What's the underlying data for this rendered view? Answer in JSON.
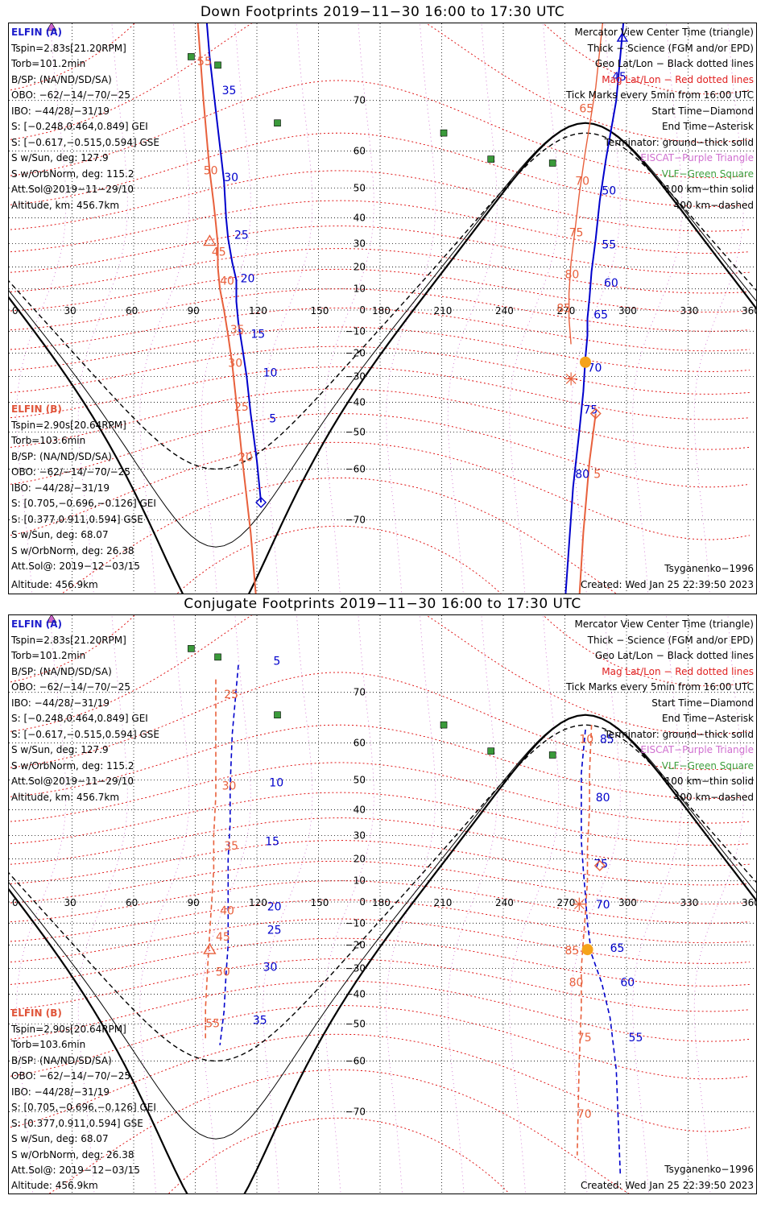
{
  "panels": [
    {
      "id": "down",
      "title": "Down Footprints 2019−11−30 16:00 to 17:30 UTC",
      "elfin_a_header": "ELFIN (A)",
      "elfin_a_lines": [
        "Tspin=2.83s[21.20RPM]",
        "Torb=101.2min",
        "B/SP: (NA/ND/SD/SA)",
        "OBO: −62/−14/−70/−25",
        "IBO: −44/28/−31/19",
        "S: [−0.248,0.464,0.849] GEI",
        "S: [−0.617,−0.515,0.594] GSE",
        "S w/Sun, deg: 127.9",
        "S w/OrbNorm, deg: 115.2",
        "Att.Sol@2019−11−29/10",
        "Altitude, km: 456.7km"
      ],
      "elfin_b_header": "ELFIN (B)",
      "elfin_b_lines": [
        "Tspin=2.90s[20.64RPM]",
        "Torb=103.6min",
        "B/SP: (NA/ND/SD/SA)",
        "OBO: −62/−14/−70/−25",
        "IBO: −44/28/−31/19",
        "S: [0.705,−0.696,−0.126] GEI",
        "S: [0.377,0.911,0.594] GSE",
        "S w/Sun, deg: 68.07",
        "S w/OrbNorm, deg: 26.38",
        "Att.Sol@: 2019−12−03/15",
        "Altitude: 456.9km"
      ],
      "model": "Tsyganenko−1996",
      "created": "Created: Wed Jan 25 22:39:50 2023",
      "track_a_labels": [
        {
          "t": "35",
          "lon": 103,
          "lat": 71
        },
        {
          "t": "30",
          "lon": 104,
          "lat": 52
        },
        {
          "t": "25",
          "lon": 109,
          "lat": 32
        },
        {
          "t": "20",
          "lon": 112,
          "lat": 13
        },
        {
          "t": "15",
          "lon": 117,
          "lat": -13
        },
        {
          "t": "10",
          "lon": 123,
          "lat": -30
        },
        {
          "t": "5",
          "lon": 126,
          "lat": -47
        },
        {
          "t": "45",
          "lon": 293,
          "lat": 73
        },
        {
          "t": "50",
          "lon": 288,
          "lat": 48
        },
        {
          "t": "55",
          "lon": 288,
          "lat": 28
        },
        {
          "t": "60",
          "lon": 289,
          "lat": 11
        },
        {
          "t": "65",
          "lon": 284,
          "lat": -4
        },
        {
          "t": "70",
          "lon": 281,
          "lat": -28
        },
        {
          "t": "75",
          "lon": 279,
          "lat": -44
        },
        {
          "t": "80",
          "lon": 275,
          "lat": -62
        }
      ],
      "track_b_labels": [
        {
          "t": "55",
          "lon": 91,
          "lat": 75
        },
        {
          "t": "50",
          "lon": 94,
          "lat": 54
        },
        {
          "t": "45",
          "lon": 98,
          "lat": 25
        },
        {
          "t": "40",
          "lon": 102,
          "lat": 12
        },
        {
          "t": "35",
          "lon": 107,
          "lat": -11
        },
        {
          "t": "30",
          "lon": 106,
          "lat": -26
        },
        {
          "t": "25",
          "lon": 109,
          "lat": -43
        },
        {
          "t": "20",
          "lon": 111,
          "lat": -58
        },
        {
          "t": "65",
          "lon": 277,
          "lat": 68
        },
        {
          "t": "70",
          "lon": 275,
          "lat": 51
        },
        {
          "t": "75",
          "lon": 272,
          "lat": 33
        },
        {
          "t": "80",
          "lon": 270,
          "lat": 15
        },
        {
          "t": "85",
          "lon": 266,
          "lat": -1
        },
        {
          "t": "5",
          "lon": 284,
          "lat": -62
        }
      ]
    },
    {
      "id": "conj",
      "title": "Conjugate Footprints 2019−11−30 16:00 to 17:30 UTC",
      "elfin_a_header": "ELFIN (A)",
      "elfin_a_lines": [
        "Tspin=2.83s[21.20RPM]",
        "Torb=101.2min",
        "B/SP: (NA/ND/SD/SA)",
        "OBO: −62/−14/−70/−25",
        "IBO: −44/28/−31/19",
        "S: [−0.248,0.464,0.849] GEI",
        "S: [−0.617,−0.515,0.594] GSE",
        "S w/Sun, deg: 127.9",
        "S w/OrbNorm, deg: 115.2",
        "Att.Sol@2019−11−29/10",
        "Altitude, km: 456.7km"
      ],
      "elfin_b_header": "ELFIN (B)",
      "elfin_b_lines": [
        "Tspin=2.90s[20.64RPM]",
        "Torb=103.6min",
        "B/SP: (NA/ND/SD/SA)",
        "OBO: −62/−14/−70/−25",
        "IBO: −44/28/−31/19",
        "S: [0.705,−0.696,−0.126] GEI",
        "S: [0.377,0.911,0.594] GSE",
        "S w/Sun, deg: 68.07",
        "S w/OrbNorm, deg: 26.38",
        "Att.Sol@: 2019−12−03/15",
        "Altitude: 456.9km"
      ],
      "model": "Tsyganenko−1996",
      "created": "Created: Wed Jan 25 22:39:50 2023",
      "track_a_labels": [
        {
          "t": "5",
          "lon": 128,
          "lat": 74
        },
        {
          "t": "10",
          "lon": 126,
          "lat": 48
        },
        {
          "t": "15",
          "lon": 124,
          "lat": 26
        },
        {
          "t": "20",
          "lon": 125,
          "lat": -4
        },
        {
          "t": "25",
          "lon": 125,
          "lat": -15
        },
        {
          "t": "30",
          "lon": 123,
          "lat": -31
        },
        {
          "t": "35",
          "lon": 118,
          "lat": -50
        },
        {
          "t": "85",
          "lon": 287,
          "lat": 60
        },
        {
          "t": "80",
          "lon": 285,
          "lat": 43
        },
        {
          "t": "75",
          "lon": 284,
          "lat": 16
        },
        {
          "t": "70",
          "lon": 285,
          "lat": -3
        },
        {
          "t": "65",
          "lon": 292,
          "lat": -23
        },
        {
          "t": "60",
          "lon": 297,
          "lat": -37
        },
        {
          "t": "55",
          "lon": 301,
          "lat": -55
        }
      ],
      "track_b_labels": [
        {
          "t": "25",
          "lon": 104,
          "lat": 69
        },
        {
          "t": "30",
          "lon": 103,
          "lat": 47
        },
        {
          "t": "35",
          "lon": 104,
          "lat": 24
        },
        {
          "t": "40",
          "lon": 102,
          "lat": -6
        },
        {
          "t": "45",
          "lon": 100,
          "lat": -18
        },
        {
          "t": "50",
          "lon": 100,
          "lat": -33
        },
        {
          "t": "55",
          "lon": 95,
          "lat": -51
        },
        {
          "t": "10",
          "lon": 277,
          "lat": 60
        },
        {
          "t": "85",
          "lon": 270,
          "lat": -24
        },
        {
          "t": "80",
          "lon": 272,
          "lat": -37
        },
        {
          "t": "75",
          "lon": 276,
          "lat": -55
        },
        {
          "t": "70",
          "lon": 276,
          "lat": -71
        }
      ]
    }
  ],
  "legend": {
    "center_time": "Mercator View Center Time (triangle)",
    "science": "Thick − Science (FGM and/or EPD)",
    "geo": "Geo Lat/Lon − Black dotted lines",
    "mag": "Mag Lat/Lon − Red dotted lines",
    "ticks": "Tick Marks every 5min from 16:00 UTC",
    "start": "Start Time−Diamond",
    "end": "End Time−Asterisk",
    "terminator": "Terminator: ground−thick solid",
    "eiscat": "EISCAT−Purple Triangle",
    "vlf": "VLF−Green Square",
    "km100": "100 km−thin solid",
    "km400": "400 km−dashed"
  },
  "axis": {
    "lon_ticks": [
      "0",
      "30",
      "60",
      "90",
      "120",
      "150",
      "180",
      "210",
      "240",
      "270",
      "300",
      "330",
      "360"
    ],
    "lat_ticks": [
      "70",
      "60",
      "50",
      "40",
      "30",
      "20",
      "10",
      "0",
      "−10",
      "−20",
      "−30",
      "−40",
      "−50",
      "−60",
      "−70"
    ]
  },
  "colors": {
    "elfin_a": "#0000cc",
    "elfin_b": "#e8603c",
    "grid": "#000000",
    "mag_grid": "#dd0000",
    "eiscat": "#cc66cc",
    "vlf": "#3a9a3a",
    "sun": "#f5a31a"
  }
}
